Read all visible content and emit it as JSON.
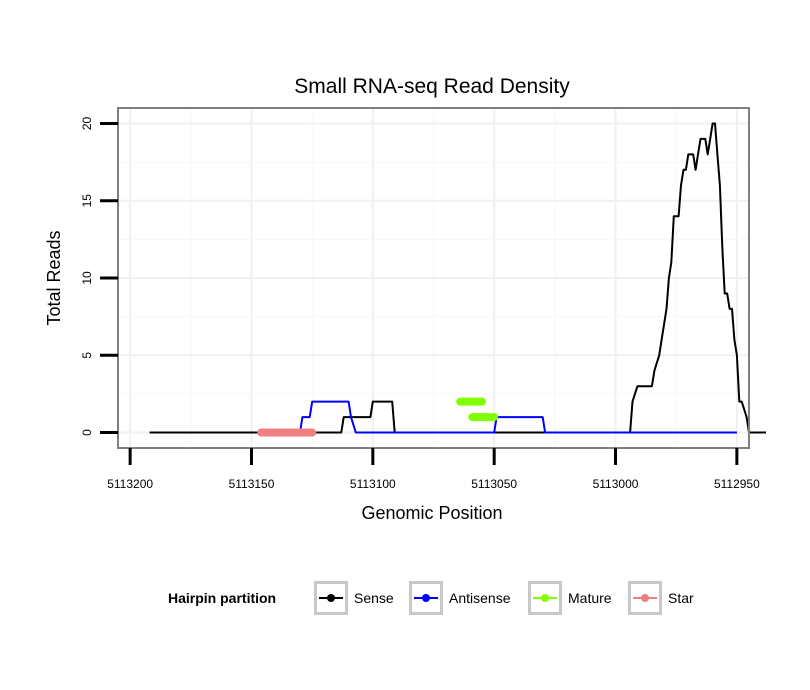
{
  "chart_data": {
    "type": "line",
    "title": "Small RNA-seq Read Density",
    "xlabel": "Genomic Position",
    "ylabel": "Total Reads",
    "xlim": [
      5113205,
      5112945
    ],
    "ylim": [
      -1,
      21
    ],
    "x_reversed": true,
    "xticks": [
      5113200,
      5113150,
      5113100,
      5113050,
      5113000,
      5112950
    ],
    "xtick_labels": [
      "5113200",
      "5113150",
      "5113100",
      "5113050",
      "5113000",
      "5112950"
    ],
    "yticks": [
      0,
      5,
      10,
      15,
      20
    ],
    "ytick_labels": [
      "0",
      "5",
      "10",
      "15",
      "20"
    ],
    "grid": true,
    "legend": {
      "title": "Hairpin partition",
      "placement": "bottom",
      "entries": [
        "Sense",
        "Antisense",
        "Mature",
        "Star"
      ]
    },
    "series": [
      {
        "name": "Sense",
        "color": "#000000",
        "points": [
          [
            5113192,
            0
          ],
          [
            5113113,
            0
          ],
          [
            5113112,
            1
          ],
          [
            5113101,
            1
          ],
          [
            5113100,
            2
          ],
          [
            5113092,
            2
          ],
          [
            5113091,
            0
          ],
          [
            5113061,
            0
          ],
          [
            5113059,
            0
          ],
          [
            5113045,
            0
          ],
          [
            5112994,
            0
          ],
          [
            5112993,
            2
          ],
          [
            5112991,
            3
          ],
          [
            5112985,
            3
          ],
          [
            5112984,
            4
          ],
          [
            5112982,
            5
          ],
          [
            5112981,
            6
          ],
          [
            5112979,
            8
          ],
          [
            5112978,
            10
          ],
          [
            5112977,
            11
          ],
          [
            5112976,
            14
          ],
          [
            5112974,
            14
          ],
          [
            5112973,
            16
          ],
          [
            5112972,
            17
          ],
          [
            5112971,
            17
          ],
          [
            5112970,
            18
          ],
          [
            5112968,
            18
          ],
          [
            5112967,
            17
          ],
          [
            5112966,
            18
          ],
          [
            5112965,
            19
          ],
          [
            5112963,
            19
          ],
          [
            5112962,
            18
          ],
          [
            5112961,
            19
          ],
          [
            5112960,
            20
          ],
          [
            5112959,
            20
          ],
          [
            5112958,
            18
          ],
          [
            5112957,
            16
          ],
          [
            5112956,
            12
          ],
          [
            5112955,
            9
          ],
          [
            5112954,
            9
          ],
          [
            5112953,
            8
          ],
          [
            5112952,
            8
          ],
          [
            5112951,
            6
          ],
          [
            5112950,
            5
          ],
          [
            5112949,
            2
          ],
          [
            5112948,
            2
          ],
          [
            5112946,
            1
          ],
          [
            5112945,
            0
          ],
          [
            5112938,
            0
          ]
        ]
      },
      {
        "name": "Antisense",
        "color": "#0000ff",
        "points": [
          [
            5113142,
            0
          ],
          [
            5113130,
            0
          ],
          [
            5113129,
            1
          ],
          [
            5113126,
            1
          ],
          [
            5113125,
            2
          ],
          [
            5113110,
            2
          ],
          [
            5113109,
            1
          ],
          [
            5113107,
            0
          ],
          [
            5113100,
            0
          ],
          [
            5113050,
            0
          ],
          [
            5113049,
            1
          ],
          [
            5113030,
            1
          ],
          [
            5113029,
            0
          ],
          [
            5112950,
            0
          ]
        ]
      },
      {
        "name": "Mature",
        "color": "#80ff00",
        "segments": [
          {
            "x0": 5113064,
            "x1": 5113055,
            "y": 2
          },
          {
            "x0": 5113059,
            "x1": 5113050,
            "y": 1
          }
        ]
      },
      {
        "name": "Star",
        "color": "#f08080",
        "segments": [
          {
            "x0": 5113146,
            "x1": 5113125,
            "y": 0
          }
        ]
      }
    ]
  }
}
